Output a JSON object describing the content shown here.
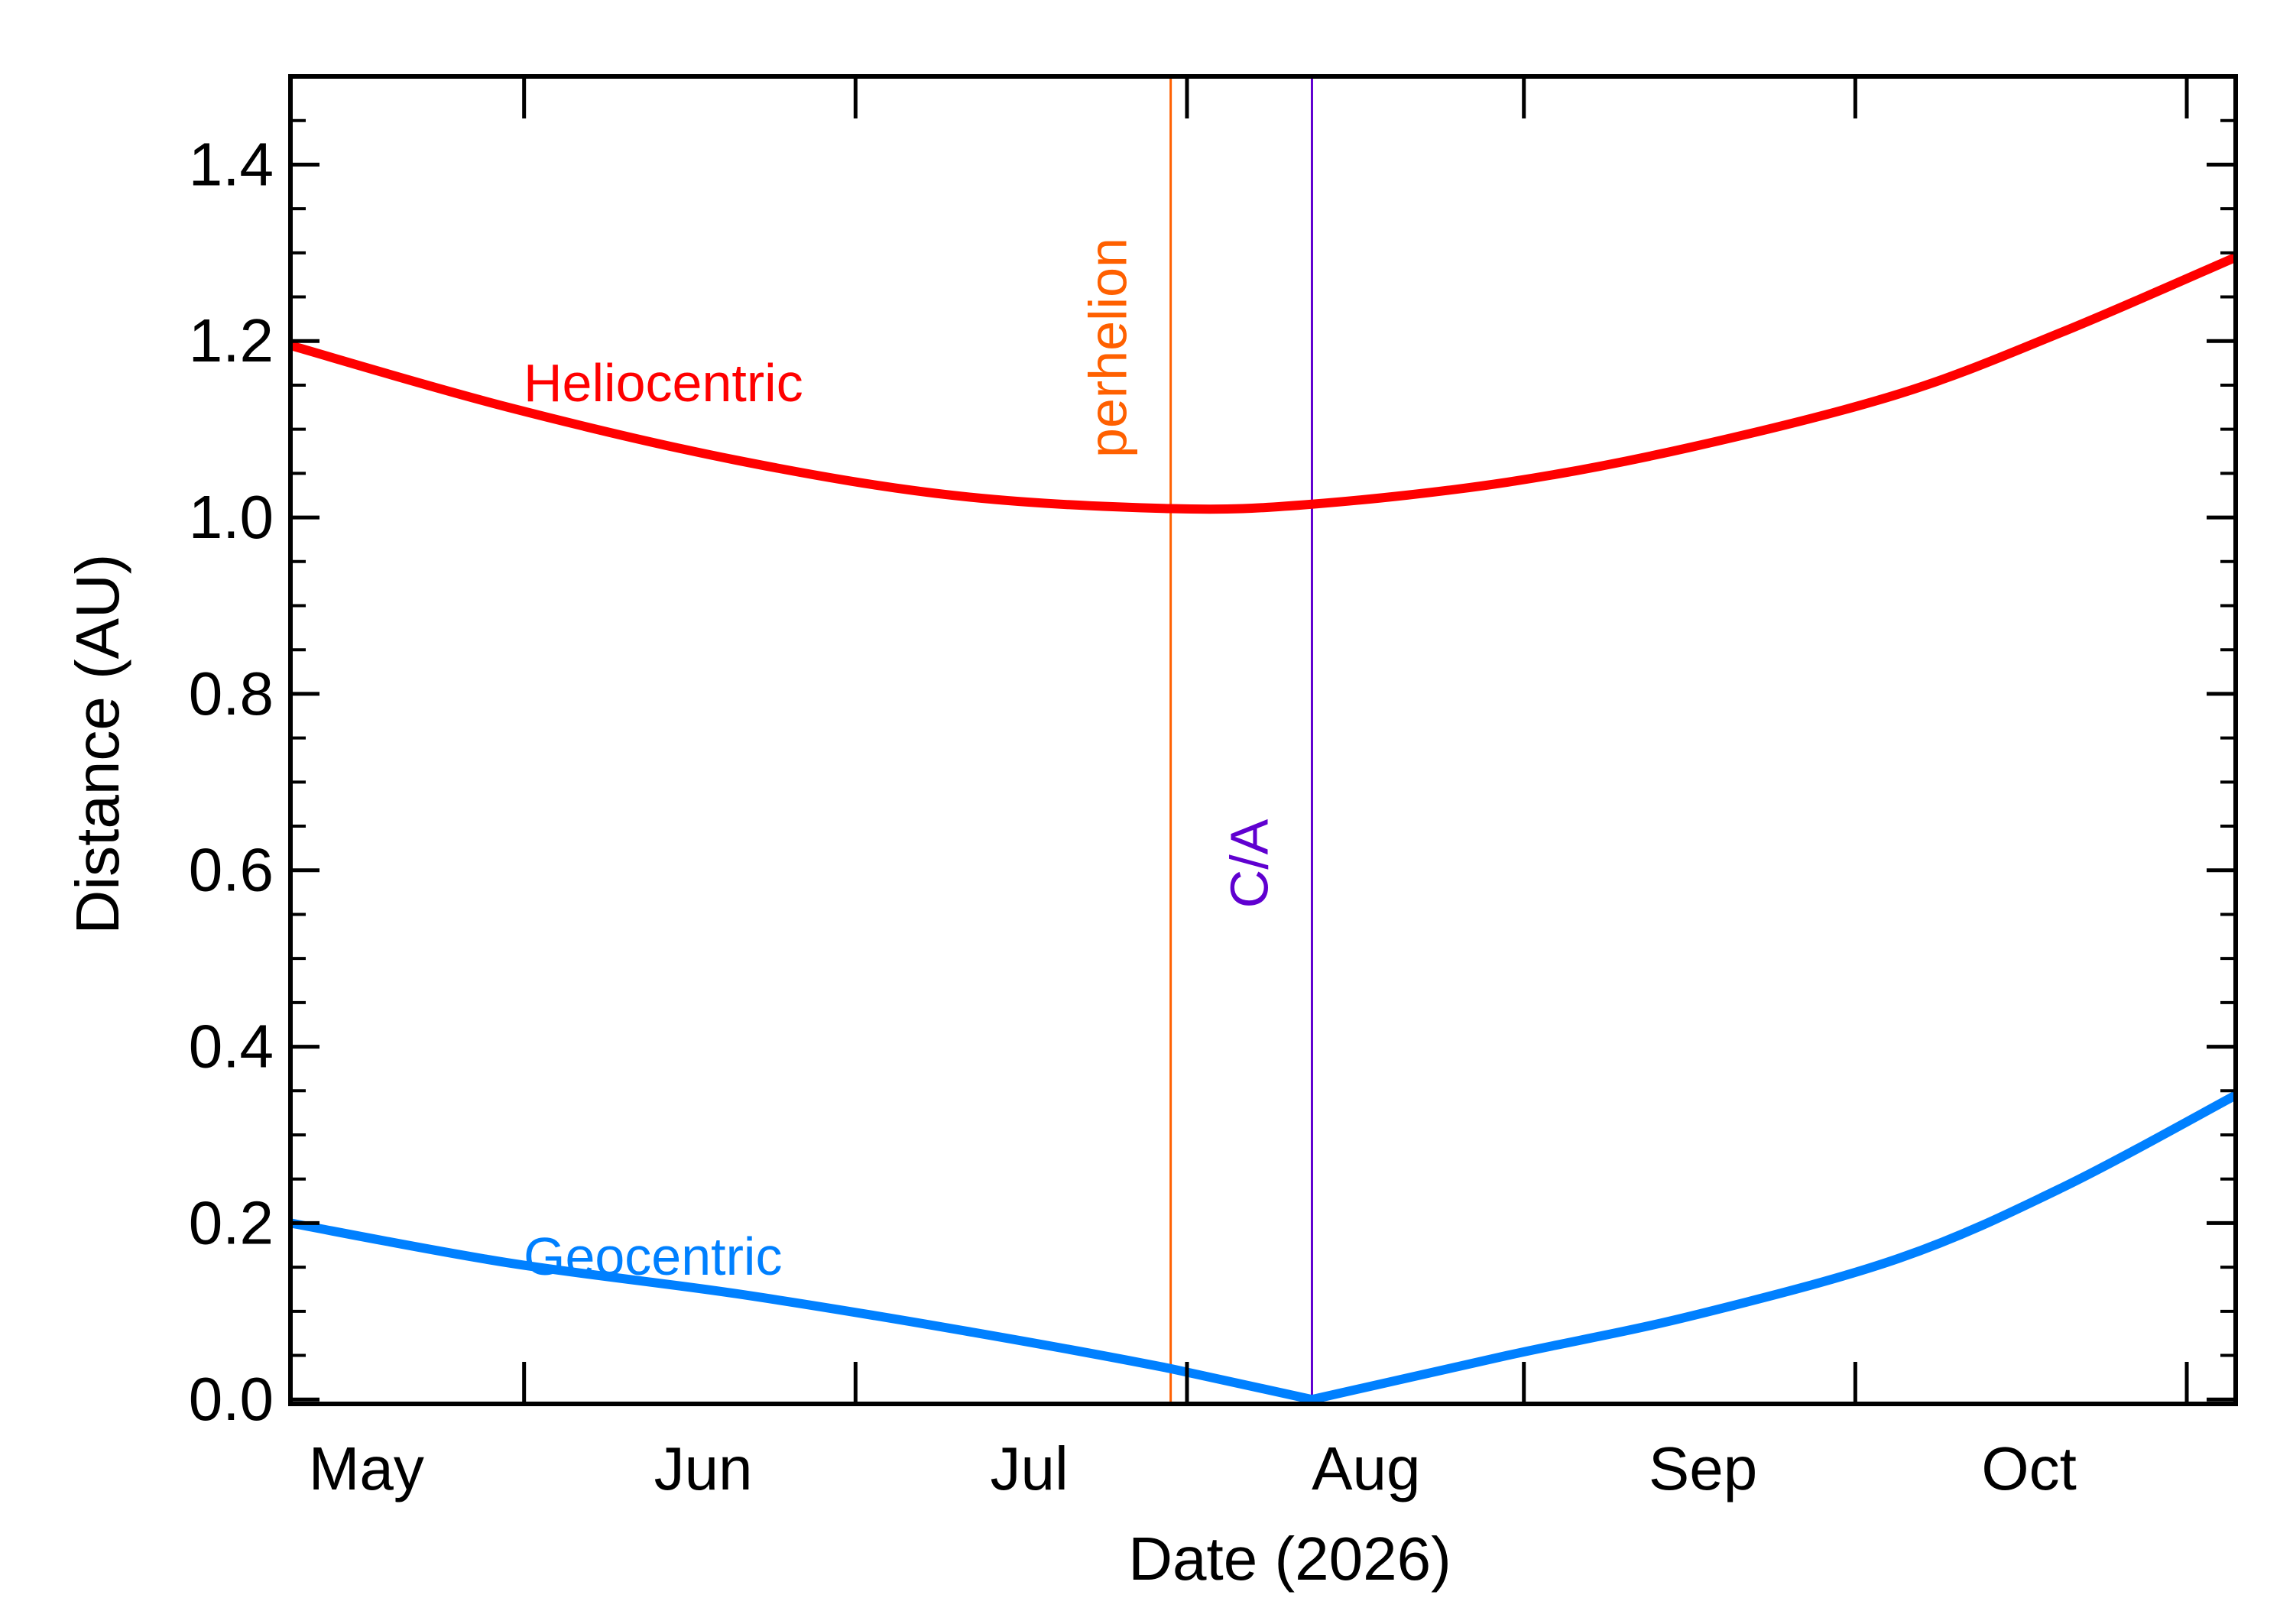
{
  "chart_data": {
    "type": "line",
    "xlabel": "Date (2026)",
    "ylabel": "Distance (AU)",
    "xlim": [
      "2026-04-25",
      "2026-10-21"
    ],
    "ylim": [
      -0.005,
      1.5
    ],
    "x_ticks": [
      {
        "date": "2026-05-01",
        "label": "May"
      },
      {
        "date": "2026-06-01",
        "label": "Jun"
      },
      {
        "date": "2026-07-01",
        "label": "Jul"
      },
      {
        "date": "2026-08-01",
        "label": "Aug"
      },
      {
        "date": "2026-09-01",
        "label": "Sep"
      },
      {
        "date": "2026-10-01",
        "label": "Oct"
      }
    ],
    "y_ticks": [
      "0.0",
      "0.2",
      "0.4",
      "0.6",
      "0.8",
      "1.0",
      "1.2",
      "1.4"
    ],
    "series": [
      {
        "name": "Heliocentric",
        "color": "#ff0000",
        "points": [
          [
            "2026-04-25",
            1.195
          ],
          [
            "2026-05-15",
            1.125
          ],
          [
            "2026-06-05",
            1.065
          ],
          [
            "2026-06-25",
            1.025
          ],
          [
            "2026-07-15",
            1.01
          ],
          [
            "2026-07-28",
            1.015
          ],
          [
            "2026-08-15",
            1.04
          ],
          [
            "2026-09-01",
            1.08
          ],
          [
            "2026-09-20",
            1.14
          ],
          [
            "2026-10-05",
            1.21
          ],
          [
            "2026-10-21",
            1.295
          ]
        ]
      },
      {
        "name": "Geocentric",
        "color": "#0080ff",
        "points": [
          [
            "2026-04-25",
            0.2
          ],
          [
            "2026-05-15",
            0.155
          ],
          [
            "2026-06-05",
            0.12
          ],
          [
            "2026-06-25",
            0.08
          ],
          [
            "2026-07-15",
            0.035
          ],
          [
            "2026-07-28",
            0.0
          ],
          [
            "2026-08-15",
            0.05
          ],
          [
            "2026-09-01",
            0.095
          ],
          [
            "2026-09-20",
            0.16
          ],
          [
            "2026-10-05",
            0.24
          ],
          [
            "2026-10-21",
            0.345
          ]
        ]
      }
    ],
    "markers": [
      {
        "name": "perhelion",
        "date": "2026-07-15",
        "color": "#ff6000"
      },
      {
        "name": "C/A",
        "date": "2026-07-28",
        "color": "#6000d0"
      }
    ],
    "grid": false
  }
}
